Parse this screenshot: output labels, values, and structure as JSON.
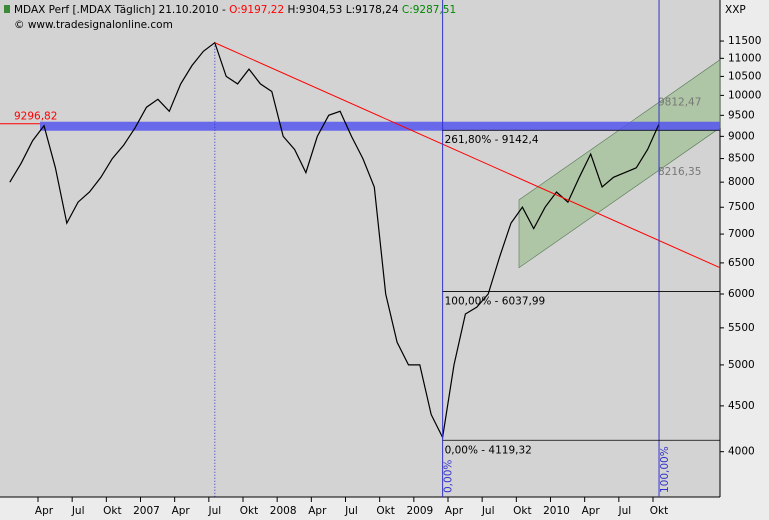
{
  "chart_data": {
    "type": "line",
    "title_parts": [
      "MDAX Perf [.MDAX  Täglich] 21.10.2010 - ",
      "O:9197,22",
      " H:9304,53",
      " L:9178,24",
      " C:9287,51"
    ],
    "subtitle": "© www.tradesignalonline.com",
    "axis_label": "XXP",
    "log_scale": true,
    "color": "#000000",
    "values": [
      8000,
      8400,
      8900,
      9250,
      8300,
      7200,
      7600,
      7800,
      8100,
      8500,
      8800,
      9200,
      9700,
      9900,
      9600,
      10300,
      10800,
      11200,
      11450,
      10500,
      10300,
      10700,
      10300,
      10100,
      9000,
      8700,
      8200,
      9000,
      9500,
      9600,
      9000,
      8500,
      7900,
      6000,
      5300,
      5000,
      5000,
      4400,
      4150,
      5000,
      5700,
      5800,
      6000,
      6600,
      7200,
      7500,
      7100,
      7500,
      7800,
      7600,
      8100,
      8600,
      7900,
      8100,
      8200,
      8300,
      8700,
      9287.51
    ],
    "xtick_labels": [
      "Apr",
      "Jul",
      "Okt",
      "2007",
      "Apr",
      "Jul",
      "Okt",
      "2008",
      "Apr",
      "Jul",
      "Okt",
      "2009",
      "Apr",
      "Jul",
      "Okt",
      "2010",
      "Apr",
      "Jul",
      "Okt"
    ],
    "ylim": [
      3560,
      12780
    ],
    "yticks": [
      4000,
      4500,
      5000,
      5500,
      6000,
      6500,
      7000,
      7500,
      8000,
      8500,
      9000,
      9500,
      10000,
      10500,
      11000,
      11500
    ],
    "level": {
      "value": 9296.82,
      "label": "9296,82",
      "color": "#ff0000",
      "band_color": "#5555ee"
    },
    "trendline": {
      "values": [
        11450,
        6420
      ],
      "color": "#ff0000"
    },
    "fibonacci": {
      "levels": [
        {
          "value": 9142.4,
          "label": "261,80% - 9142,4"
        },
        {
          "value": 6037.99,
          "label": "100,00% - 6037,99"
        },
        {
          "value": 4119.32,
          "label": "0,00% - 4119,32"
        }
      ],
      "x_labels": [
        "0,00%",
        "100,00%"
      ],
      "color": "#3333cc"
    },
    "channel": {
      "upper": [
        7643,
        10960
      ],
      "lower": [
        6420,
        9200
      ],
      "labels": [
        {
          "value": 9812.47,
          "label": "9812,47"
        },
        {
          "value": 8216.35,
          "label": "8216,35"
        }
      ],
      "color": "#8fbc7f"
    }
  }
}
